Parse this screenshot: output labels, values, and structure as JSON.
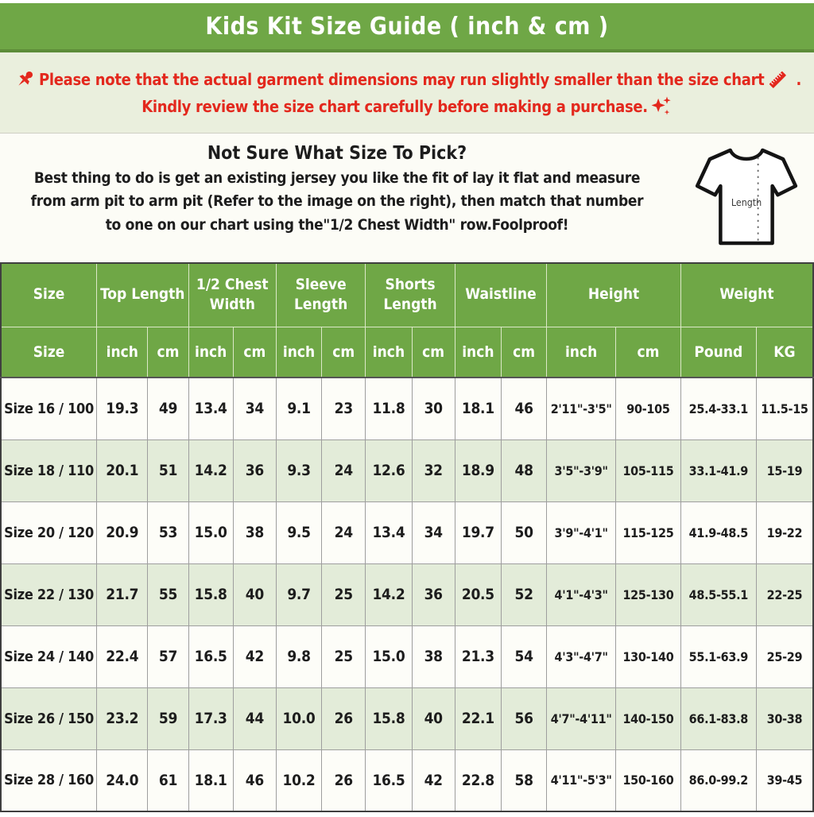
{
  "title": "Kids Kit Size Guide ( inch & cm )",
  "notice": {
    "line1": "Please note that the actual garment dimensions may run slightly smaller than the size chart",
    "line1_suffix": " .",
    "line2": "Kindly review the size chart carefully before making a purchase."
  },
  "instruction": {
    "heading": "Not Sure What Size To Pick?",
    "body_lines": [
      "Best thing to do is get an existing jersey you like the fit of lay it flat and measure",
      "from arm pit to arm pit (Refer to the image on the right), then match that number",
      "to one on our chart using the\"1/2 Chest Width\" row.Foolproof!"
    ],
    "shirt_label": "Length"
  },
  "icons": {
    "pushpin_icon": "red pushpin",
    "ruler_icon": "red diagonal ruler",
    "sparkles_icon": "red sparkles",
    "tshirt_diagram": "t-shirt outline with dashed length line"
  },
  "table": {
    "group_headers": [
      {
        "label": "Size",
        "span": 1
      },
      {
        "label": "Top Length",
        "span": 2
      },
      {
        "label": "1/2 Chest Width",
        "span": 2
      },
      {
        "label": "Sleeve Length",
        "span": 2
      },
      {
        "label": "Shorts Length",
        "span": 2
      },
      {
        "label": "Waistline",
        "span": 2
      },
      {
        "label": "Height",
        "span": 2
      },
      {
        "label": "Weight",
        "span": 2
      }
    ],
    "unit_headers": [
      "Size",
      "inch",
      "cm",
      "inch",
      "cm",
      "inch",
      "cm",
      "inch",
      "cm",
      "inch",
      "cm",
      "inch",
      "cm",
      "Pound",
      "KG"
    ],
    "rows": [
      [
        "Size 16 / 100",
        "19.3",
        "49",
        "13.4",
        "34",
        "9.1",
        "23",
        "11.8",
        "30",
        "18.1",
        "46",
        "2'11\"-3'5\"",
        "90-105",
        "25.4-33.1",
        "11.5-15"
      ],
      [
        "Size 18 / 110",
        "20.1",
        "51",
        "14.2",
        "36",
        "9.3",
        "24",
        "12.6",
        "32",
        "18.9",
        "48",
        "3'5\"-3'9\"",
        "105-115",
        "33.1-41.9",
        "15-19"
      ],
      [
        "Size 20 / 120",
        "20.9",
        "53",
        "15.0",
        "38",
        "9.5",
        "24",
        "13.4",
        "34",
        "19.7",
        "50",
        "3'9\"-4'1\"",
        "115-125",
        "41.9-48.5",
        "19-22"
      ],
      [
        "Size 22 / 130",
        "21.7",
        "55",
        "15.8",
        "40",
        "9.7",
        "25",
        "14.2",
        "36",
        "20.5",
        "52",
        "4'1\"-4'3\"",
        "125-130",
        "48.5-55.1",
        "22-25"
      ],
      [
        "Size 24 / 140",
        "22.4",
        "57",
        "16.5",
        "42",
        "9.8",
        "25",
        "15.0",
        "38",
        "21.3",
        "54",
        "4'3\"-4'7\"",
        "130-140",
        "55.1-63.9",
        "25-29"
      ],
      [
        "Size 26 / 150",
        "23.2",
        "59",
        "17.3",
        "44",
        "10.0",
        "26",
        "15.8",
        "40",
        "22.1",
        "56",
        "4'7\"-4'11\"",
        "140-150",
        "66.1-83.8",
        "30-38"
      ],
      [
        "Size 28 / 160",
        "24.0",
        "61",
        "18.1",
        "46",
        "10.2",
        "26",
        "16.5",
        "42",
        "22.8",
        "58",
        "4'11\"-5'3\"",
        "150-160",
        "86.0-99.2",
        "39-45"
      ]
    ]
  },
  "colors": {
    "header_green": "#6fa746",
    "header_green_dark": "#5d8c39",
    "notice_bg": "#eaefdd",
    "alert_red": "#e3281d",
    "row_alt_green": "#e3ecd9",
    "row_white": "#fdfdf8",
    "text_black": "#1d1d1d",
    "white": "#ffffff"
  }
}
